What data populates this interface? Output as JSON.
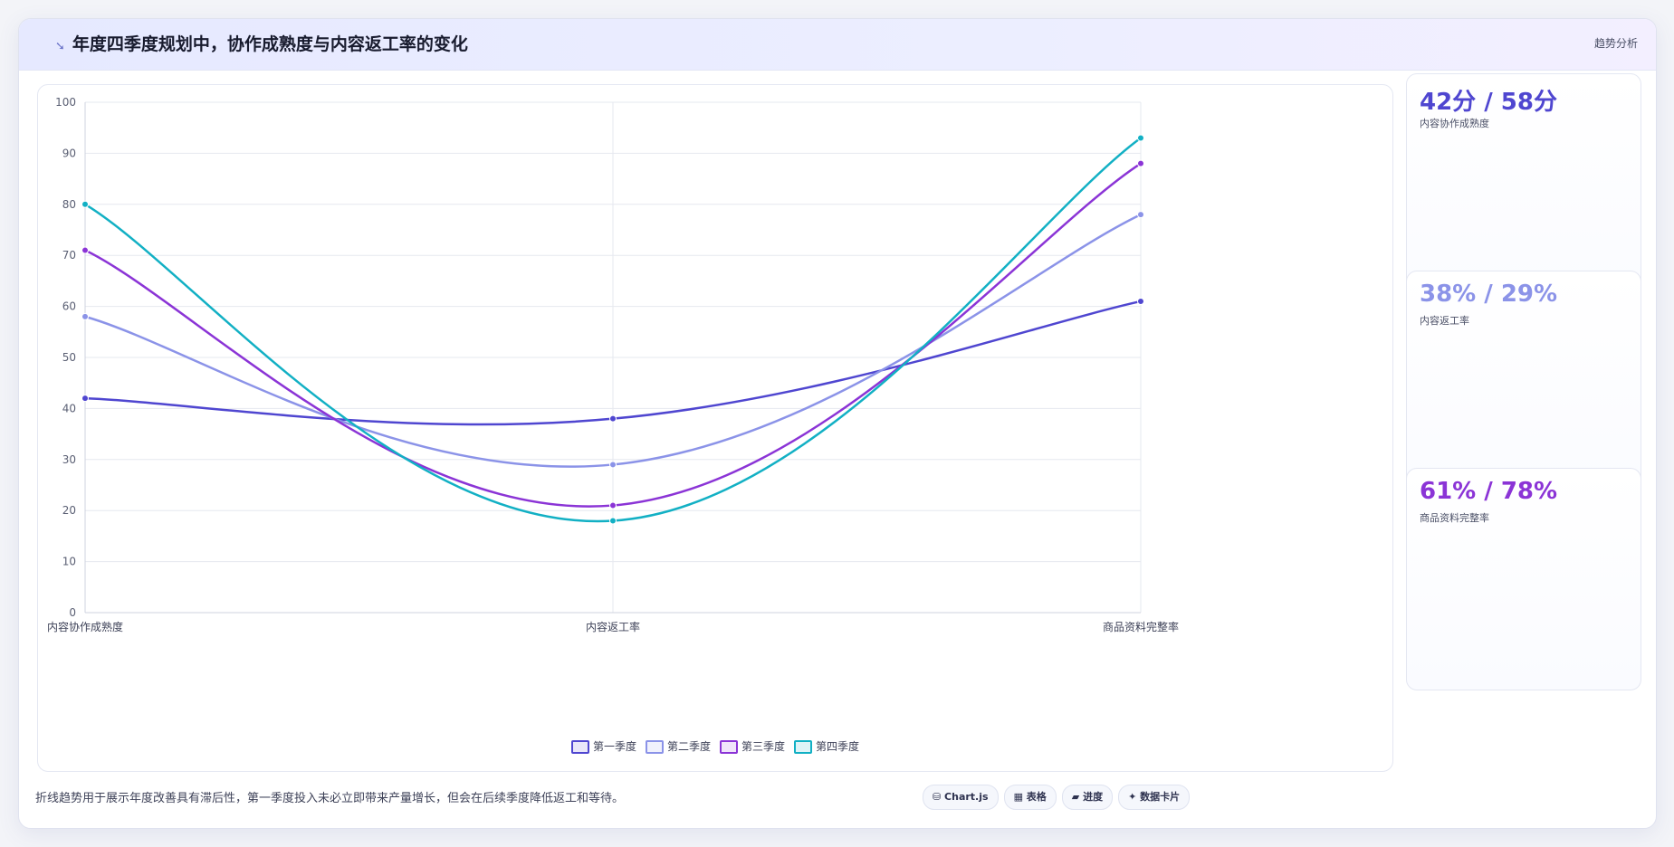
{
  "header": {
    "title": "年度四季度规划中，协作成熟度与内容返工率的变化",
    "right_label": "趋势分析"
  },
  "chart_data": {
    "type": "line",
    "categories": [
      "内容协作成熟度",
      "内容返工率",
      "商品资料完整率"
    ],
    "ylim": [
      0,
      100
    ],
    "yticks": [
      0,
      10,
      20,
      30,
      40,
      50,
      60,
      70,
      80,
      90,
      100
    ],
    "grid": true,
    "legend_position": "bottom",
    "series": [
      {
        "name": "第一季度",
        "color": "#4f46d0",
        "values": [
          42,
          38,
          61
        ]
      },
      {
        "name": "第二季度",
        "color": "#8b93e8",
        "values": [
          58,
          29,
          78
        ]
      },
      {
        "name": "第三季度",
        "color": "#8b34d6",
        "values": [
          71,
          21,
          88
        ]
      },
      {
        "name": "第四季度",
        "color": "#12b0c4",
        "values": [
          80,
          18,
          93
        ]
      }
    ]
  },
  "side_cards": [
    {
      "value": "42分 / 58分",
      "label": "内容协作成熟度",
      "color": "#4f46d0"
    },
    {
      "value": "38% / 29%",
      "label": "内容返工率",
      "color": "#8b93e8"
    },
    {
      "value": "61% / 78%",
      "label": "商品资料完整率",
      "color": "#8b34d6"
    }
  ],
  "footer": {
    "note": "折线趋势用于展示年度改善具有滞后性，第一季度投入未必立即带来产量增长，但会在后续季度降低返工和等待。",
    "tags": [
      "Chart.js",
      "表格",
      "进度",
      "数据卡片"
    ]
  }
}
